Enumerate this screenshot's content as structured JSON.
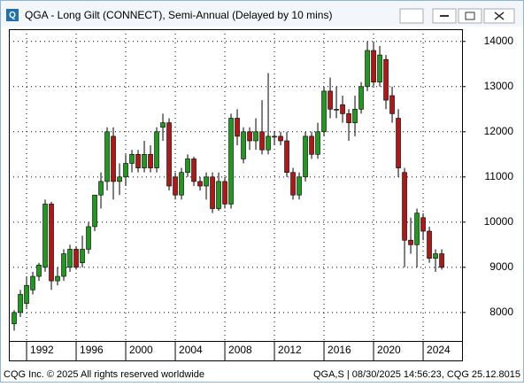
{
  "chart_data": {
    "type": "candlestick",
    "title": "QGA - Long Gilt (CONNECT), Semi-Annual (Delayed by 10 mins)",
    "footer": [
      "CQG Inc. © 2025 All rights reserved worldwide",
      "QGA,S | 08/30/2025 14:56:23, CQG 25.12.8015"
    ],
    "x": [
      1991.0,
      1991.5,
      1992.0,
      1992.5,
      1993.0,
      1993.5,
      1994.0,
      1994.5,
      1995.0,
      1995.5,
      1996.0,
      1996.5,
      1997.0,
      1997.5,
      1998.0,
      1998.5,
      1999.0,
      1999.5,
      2000.0,
      2000.5,
      2001.0,
      2001.5,
      2002.0,
      2002.5,
      2003.0,
      2003.5,
      2004.0,
      2004.5,
      2005.0,
      2005.5,
      2006.0,
      2006.5,
      2007.0,
      2007.5,
      2008.0,
      2008.5,
      2009.0,
      2009.5,
      2010.0,
      2010.5,
      2011.0,
      2011.5,
      2012.0,
      2012.5,
      2013.0,
      2013.5,
      2014.0,
      2014.5,
      2015.0,
      2015.5,
      2016.0,
      2016.5,
      2017.0,
      2017.5,
      2018.0,
      2018.5,
      2019.0,
      2019.5,
      2020.0,
      2020.5,
      2021.0,
      2021.5,
      2022.0,
      2022.5,
      2023.0,
      2023.5,
      2024.0,
      2024.5,
      2025.0,
      2025.5
    ],
    "open": [
      7750,
      8000,
      8200,
      8500,
      8800,
      9000,
      10400,
      8700,
      8800,
      9000,
      9400,
      9100,
      9400,
      9900,
      10600,
      10900,
      11900,
      10900,
      11000,
      11300,
      11500,
      11200,
      11500,
      11200,
      12100,
      12200,
      11000,
      10600,
      11100,
      11400,
      10900,
      10800,
      11000,
      10300,
      10900,
      10400,
      12300,
      11400,
      12000,
      11800,
      12000,
      11600,
      11900,
      11900,
      11800,
      11100,
      10600,
      11000,
      11900,
      11500,
      12000,
      12900,
      12500,
      12600,
      12400,
      12200,
      12500,
      13000,
      13800,
      13100,
      13600,
      12800,
      12300,
      11100,
      9600,
      9500,
      10100,
      9800,
      9200,
      9300
    ],
    "high": [
      8050,
      8500,
      8800,
      8900,
      9100,
      10500,
      10450,
      9000,
      9400,
      9500,
      9450,
      9700,
      10000,
      10600,
      11100,
      12100,
      12100,
      11300,
      11500,
      11600,
      11600,
      11800,
      11700,
      12100,
      12400,
      12300,
      11100,
      11200,
      11500,
      11450,
      11000,
      11100,
      11100,
      11100,
      11000,
      12400,
      12500,
      12100,
      12100,
      12300,
      12700,
      13300,
      12000,
      12000,
      12000,
      11200,
      11100,
      12000,
      12000,
      12200,
      13000,
      13200,
      13000,
      12800,
      12500,
      12800,
      13100,
      14000,
      14000,
      13900,
      13700,
      13000,
      12500,
      11200,
      10100,
      10300,
      10200,
      9900,
      9400,
      9400
    ],
    "low": [
      7600,
      7900,
      8100,
      8400,
      8700,
      8900,
      8500,
      8600,
      8700,
      8900,
      8950,
      9000,
      9300,
      9800,
      10300,
      10700,
      10500,
      10600,
      10800,
      11100,
      11100,
      11100,
      11100,
      11100,
      11800,
      10700,
      10500,
      10500,
      11000,
      10800,
      10700,
      10500,
      10200,
      10250,
      10300,
      10300,
      11700,
      11300,
      11600,
      11600,
      11500,
      11500,
      11700,
      11700,
      11000,
      10500,
      10500,
      10900,
      11400,
      11400,
      11900,
      12300,
      12300,
      12200,
      11800,
      11900,
      12400,
      12900,
      13000,
      13000,
      12500,
      12200,
      11000,
      9000,
      9300,
      9000,
      9600,
      9100,
      8900,
      8950
    ],
    "close": [
      8000,
      8400,
      8600,
      8800,
      9050,
      10400,
      8700,
      8800,
      9300,
      9400,
      9000,
      9400,
      9900,
      10600,
      10900,
      12000,
      10900,
      11000,
      11300,
      11500,
      11200,
      11500,
      11200,
      12000,
      12200,
      10800,
      10600,
      11100,
      11400,
      10900,
      10800,
      11000,
      10300,
      10900,
      10400,
      12300,
      11900,
      12000,
      11800,
      12000,
      11600,
      11900,
      11900,
      11800,
      11100,
      10600,
      11000,
      11900,
      11500,
      12000,
      12900,
      12500,
      12500,
      12400,
      12200,
      12500,
      13000,
      13800,
      13100,
      13700,
      12700,
      12400,
      11200,
      9600,
      9500,
      10200,
      9800,
      9200,
      9300,
      9000
    ],
    "up_color": "#1f9a1f",
    "down_color": "#b01818",
    "xlim": [
      1990.57,
      2027.14
    ],
    "ylim": [
      7370,
      14270
    ],
    "xticks": [
      1992,
      1996,
      2000,
      2004,
      2008,
      2012,
      2016,
      2020,
      2024
    ],
    "yticks": [
      8000,
      9000,
      10000,
      11000,
      12000,
      13000,
      14000
    ],
    "grid": true
  }
}
